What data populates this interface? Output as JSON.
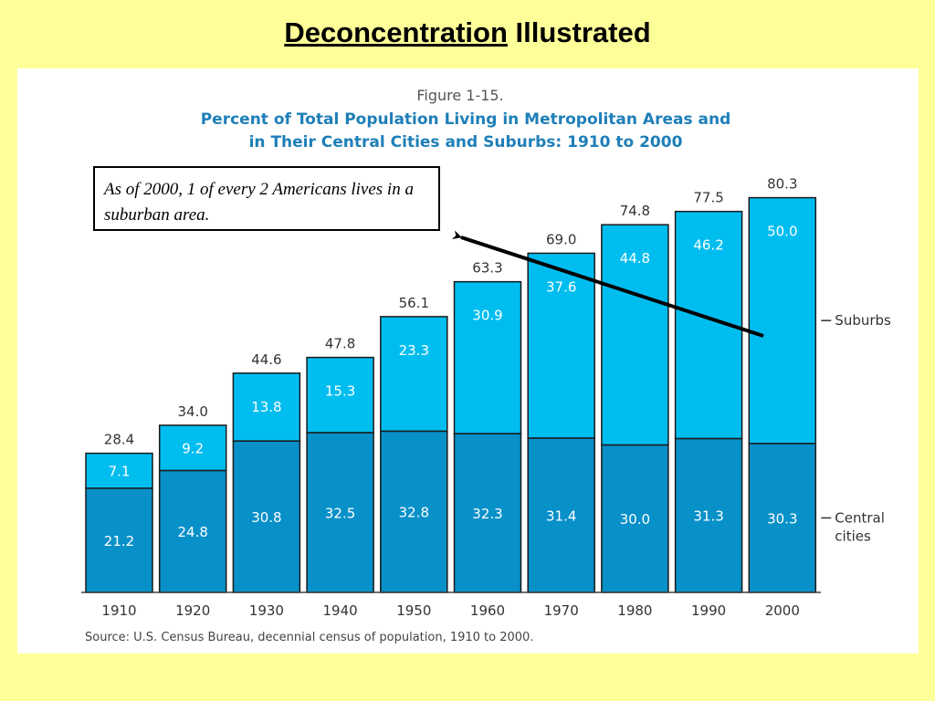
{
  "slide": {
    "title_underlined": "Deconcentration",
    "title_rest": " Illustrated"
  },
  "figure": {
    "label": "Figure 1-15.",
    "title_line1": "Percent of Total Population Living in Metropolitan Areas and",
    "title_line2": "in Their Central Cities and Suburbs:  1910 to 2000",
    "source": "Source:  U.S. Census Bureau, decennial census of population, 1910 to 2000.",
    "callout": "As of 2000, 1 of every 2 Americans lives in a suburban area."
  },
  "colors": {
    "background": "#FFFF99",
    "central_cities": "#0890C8",
    "suburbs": "#00BDF0",
    "figure_title": "#1E7FB8"
  },
  "chart_data": {
    "type": "bar",
    "stacked": true,
    "categories": [
      "1910",
      "1920",
      "1930",
      "1940",
      "1950",
      "1960",
      "1970",
      "1980",
      "1990",
      "2000"
    ],
    "series": [
      {
        "name": "Central cities",
        "legend_label": "Central\ncities",
        "values": [
          21.2,
          24.8,
          30.8,
          32.5,
          32.8,
          32.3,
          31.4,
          30.0,
          31.3,
          30.3
        ]
      },
      {
        "name": "Suburbs",
        "legend_label": "Suburbs",
        "values": [
          7.1,
          9.2,
          13.8,
          15.3,
          23.3,
          30.9,
          37.6,
          44.8,
          46.2,
          50.0
        ]
      }
    ],
    "totals": [
      28.4,
      34.0,
      44.6,
      47.8,
      56.1,
      63.3,
      69.0,
      74.8,
      77.5,
      80.3
    ],
    "ylim": [
      0,
      100
    ],
    "legend_position": "right",
    "grid": false
  }
}
